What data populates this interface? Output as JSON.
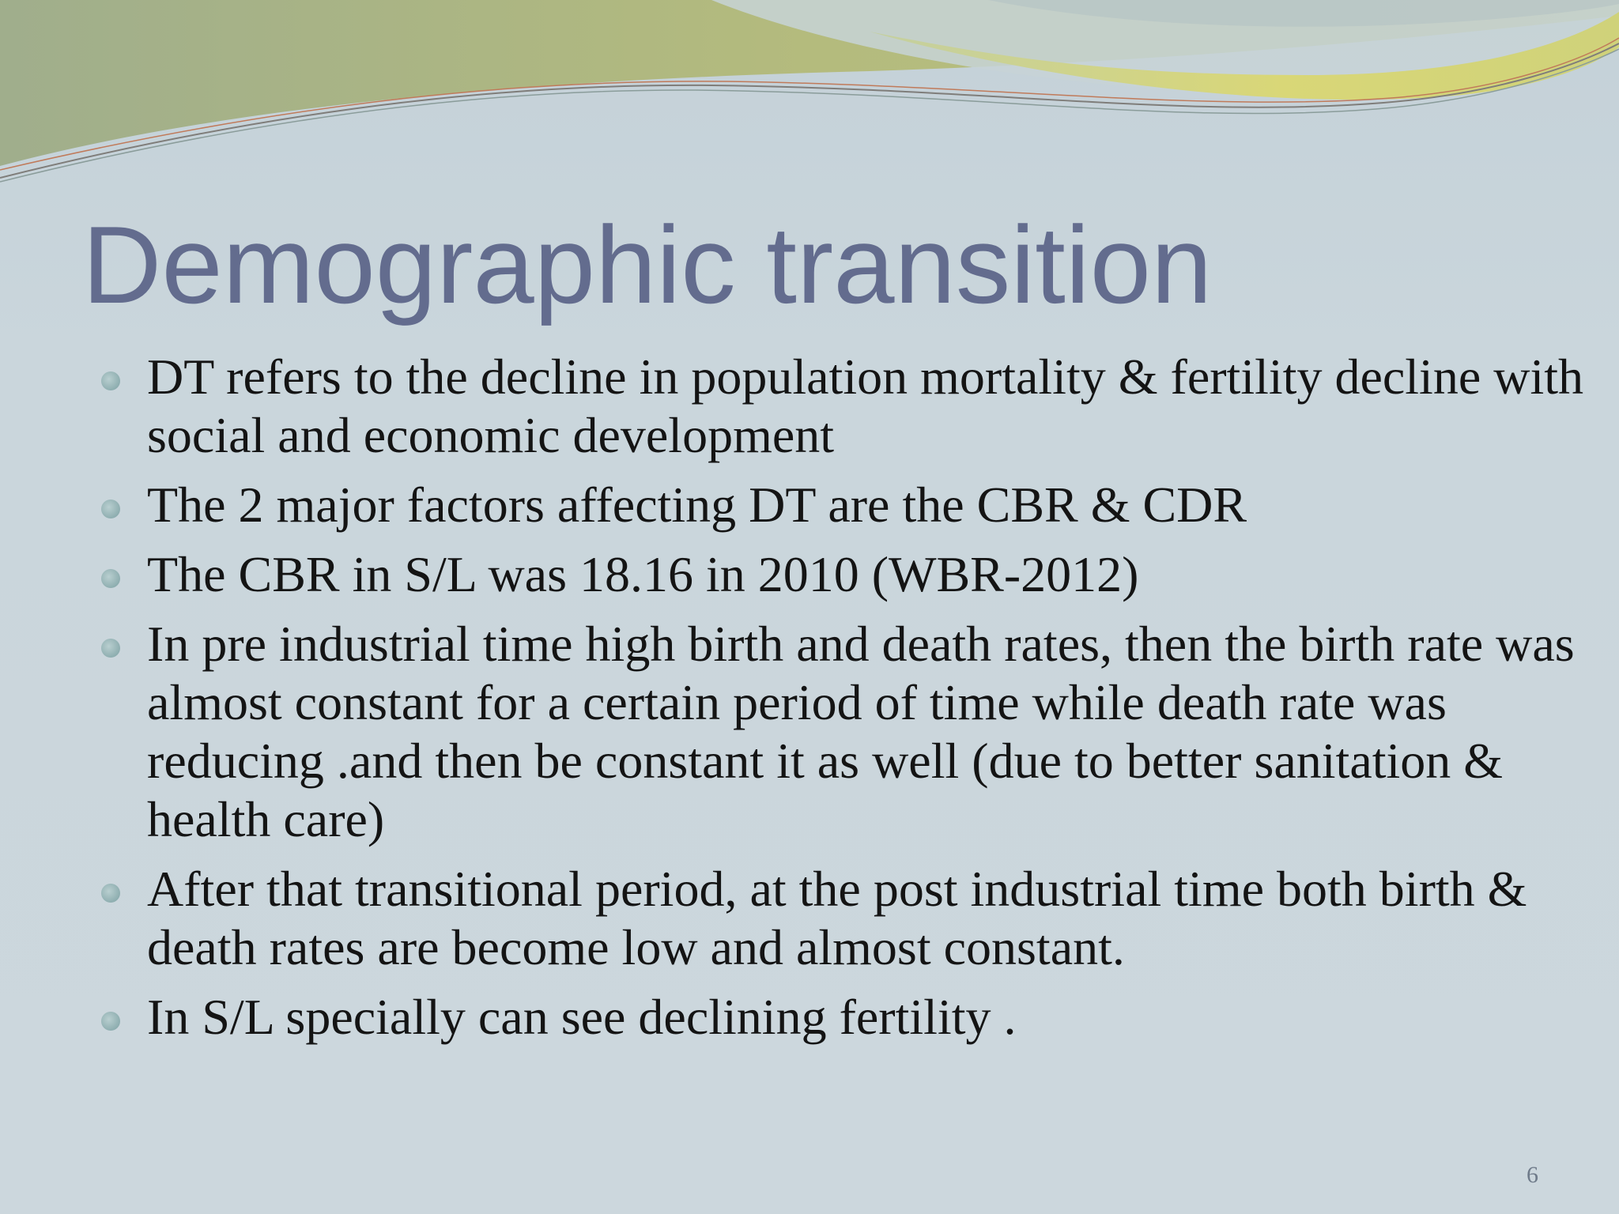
{
  "slide": {
    "title": "Demographic transition",
    "bullets": [
      "DT refers to the decline in population mortality & fertility decline with social and economic development",
      "The 2 major factors affecting DT are the CBR & CDR",
      "The CBR in S/L was 18.16 in 2010 (WBR-2012)",
      "In pre industrial time high birth and death rates, then the birth rate  was almost constant for a certain period of time while death rate was reducing .and then be constant it as well (due to better sanitation & health care)",
      "After that transitional period, at  the post industrial time both birth & death rates are become low and almost constant.",
      "In S/L specially can see declining fertility ."
    ],
    "page_number": "6"
  },
  "colors": {
    "title": "#636c8e",
    "body_text": "#141414",
    "background": "#c9d5db",
    "wave_green": "#a9b77a",
    "wave_yellow": "#d6d66a",
    "bullet": "#8eaeb0"
  }
}
